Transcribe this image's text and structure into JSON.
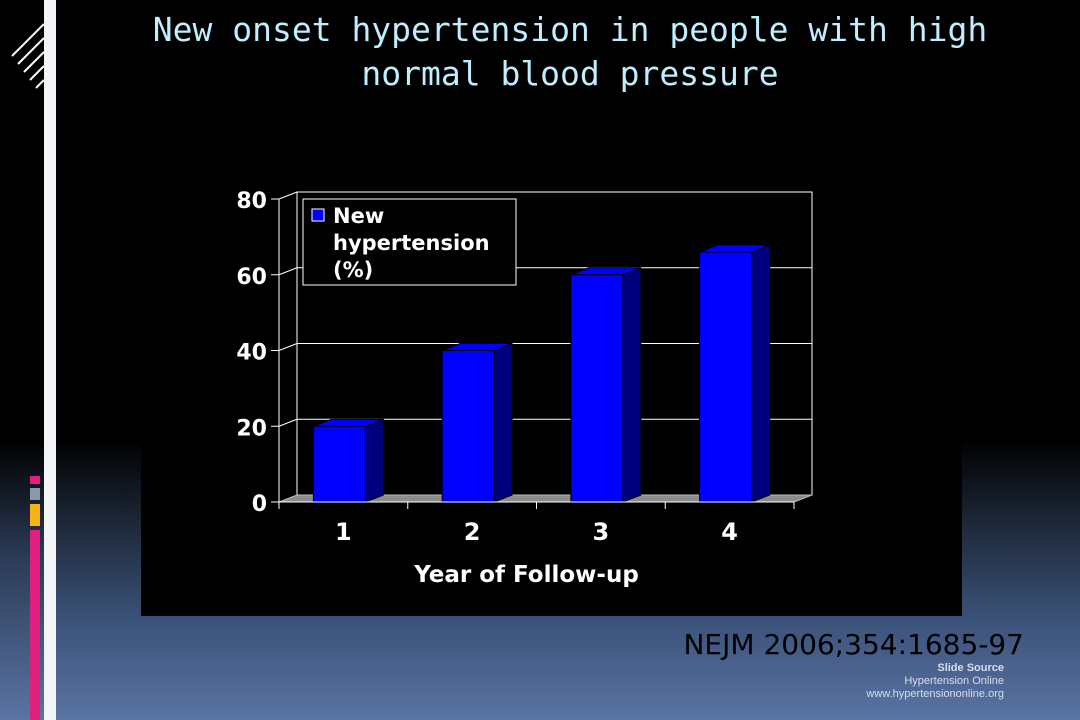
{
  "slide": {
    "title": "New onset hypertension in people with high normal blood pressure",
    "citation": "NEJM 2006;354:1685-97",
    "source_heading": "Slide Source",
    "source_name": "Hypertension Online",
    "source_url": "www.hypertensiononline.org"
  },
  "colors": {
    "bar_front": "#0000ff",
    "bar_side": "#00007f",
    "title_text": "#bfeeff",
    "accent_pink": "#e01f7f",
    "accent_yellow": "#f5b316"
  },
  "chart_data": {
    "type": "bar",
    "categories": [
      "1",
      "2",
      "3",
      "4"
    ],
    "series": [
      {
        "name": "New hypertension (%)",
        "values": [
          20,
          40,
          60,
          66
        ]
      }
    ],
    "xlabel": "Year of Follow-up",
    "ylabel": "",
    "ylim": [
      0,
      80
    ],
    "yticks": [
      0,
      20,
      40,
      60,
      80
    ],
    "grid": true,
    "legend": "top-left",
    "style": "3d"
  }
}
